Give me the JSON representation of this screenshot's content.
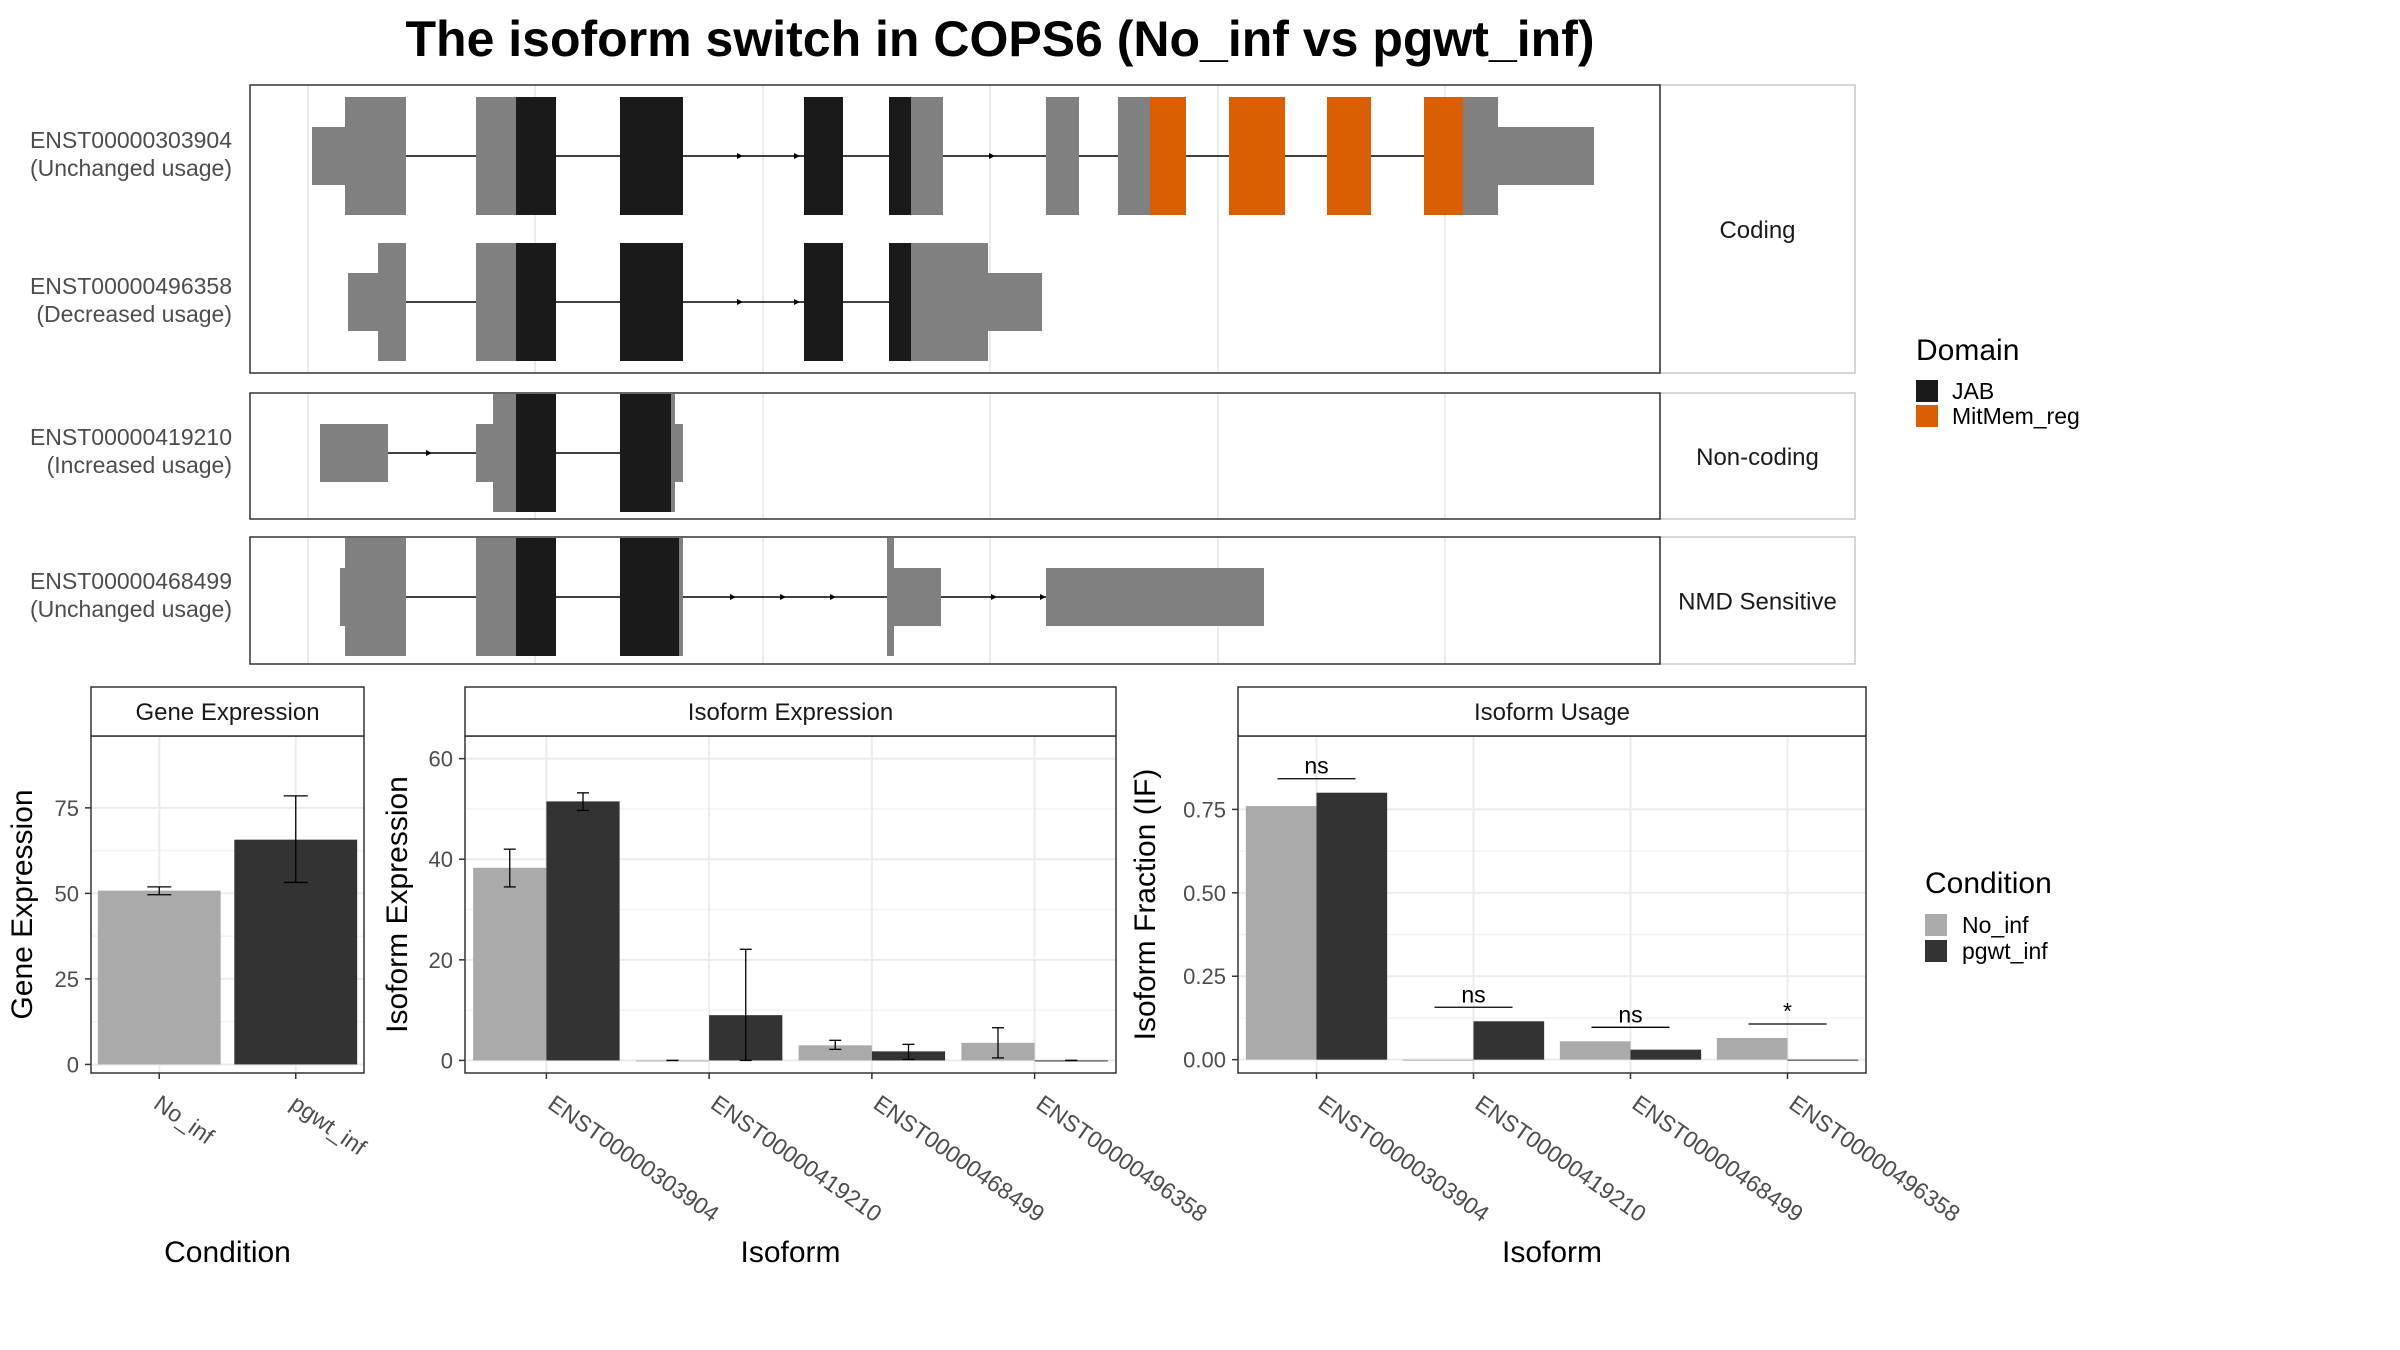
{
  "title": "The isoform switch in COPS6 (No_inf vs pgwt_inf)",
  "colors": {
    "exon_plain": "#808080",
    "JAB": "#1a1a1a",
    "MitMem_reg": "#d95f02",
    "No_inf": "#aaaaaa",
    "pgwt_inf": "#333333"
  },
  "structure": {
    "facets": [
      "Coding",
      "Non-coding",
      "NMD Sensitive"
    ],
    "isoforms": [
      {
        "id": "ENST00000303904",
        "usage": "(Unchanged usage)",
        "facet": "Coding"
      },
      {
        "id": "ENST00000496358",
        "usage": "(Decreased usage)",
        "facet": "Coding"
      },
      {
        "id": "ENST00000419210",
        "usage": "(Increased usage)",
        "facet": "Non-coding"
      },
      {
        "id": "ENST00000468499",
        "usage": "(Unchanged usage)",
        "facet": "NMD Sensitive"
      }
    ],
    "legend": {
      "title": "Domain",
      "items": [
        {
          "label": "JAB",
          "color": "#1a1a1a"
        },
        {
          "label": "MitMem_reg",
          "color": "#d95f02"
        }
      ]
    }
  },
  "chart_data": [
    {
      "type": "bar",
      "strip": "Gene Expression",
      "xlabel": "Condition",
      "ylabel": "Gene Expression",
      "categories": [
        "No_inf",
        "pgwt_inf"
      ],
      "values": [
        50.8,
        65.7
      ],
      "err_low": [
        49.6,
        53.2
      ],
      "err_high": [
        51.9,
        78.5
      ],
      "ylim": [
        -2.5,
        96
      ],
      "yticks": [
        0,
        25,
        50,
        75
      ],
      "grid": true
    },
    {
      "type": "bar",
      "strip": "Isoform Expression",
      "xlabel": "Isoform",
      "ylabel": "Isoform Expression",
      "categories": [
        "ENST00000303904",
        "ENST00000419210",
        "ENST00000468499",
        "ENST00000496358"
      ],
      "series": [
        {
          "name": "No_inf",
          "values": [
            38.3,
            0,
            3.0,
            3.5
          ],
          "err_low": [
            34.5,
            0,
            2.2,
            0.5
          ],
          "err_high": [
            42.0,
            0,
            4.0,
            6.5
          ]
        },
        {
          "name": "pgwt_inf",
          "values": [
            51.5,
            9.0,
            1.8,
            0
          ],
          "err_low": [
            49.7,
            0,
            0.2,
            0
          ],
          "err_high": [
            53.2,
            22.1,
            3.2,
            0
          ]
        }
      ],
      "ylim": [
        -2.5,
        64.5
      ],
      "yticks": [
        0,
        20,
        40,
        60
      ],
      "grid": true
    },
    {
      "type": "bar",
      "strip": "Isoform Usage",
      "xlabel": "Isoform",
      "ylabel": "Isoform Fraction (IF)",
      "categories": [
        "ENST00000303904",
        "ENST00000419210",
        "ENST00000468499",
        "ENST00000496358"
      ],
      "series": [
        {
          "name": "No_inf",
          "values": [
            0.76,
            0,
            0.055,
            0.065
          ]
        },
        {
          "name": "pgwt_inf",
          "values": [
            0.8,
            0.115,
            0.03,
            0
          ]
        }
      ],
      "significance": [
        "ns",
        "ns",
        "ns",
        "*"
      ],
      "ylim": [
        -0.04,
        0.97
      ],
      "yticks": [
        0.0,
        0.25,
        0.5,
        0.75
      ],
      "ytick_labels": [
        "0.00",
        "0.25",
        "0.50",
        "0.75"
      ],
      "grid": true
    }
  ],
  "condition_legend": {
    "title": "Condition",
    "items": [
      {
        "label": "No_inf",
        "color": "#aaaaaa"
      },
      {
        "label": "pgwt_inf",
        "color": "#333333"
      }
    ]
  }
}
